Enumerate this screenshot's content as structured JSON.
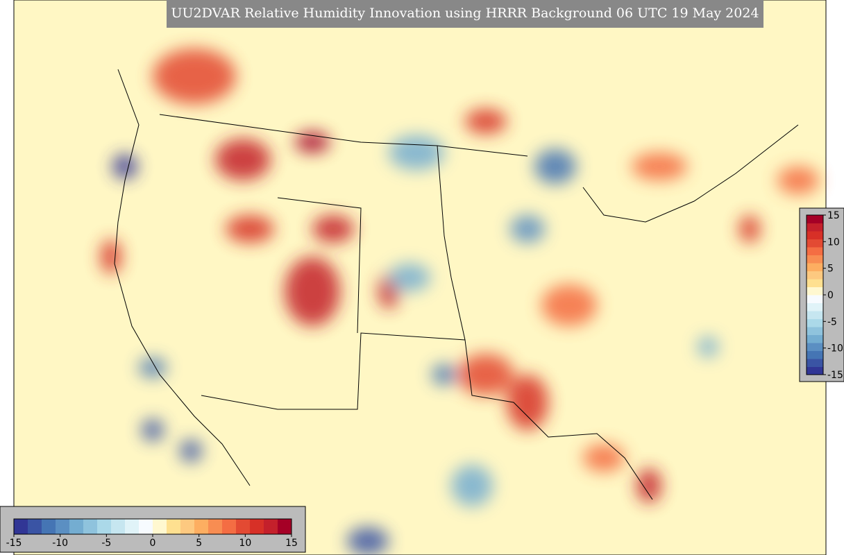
{
  "title": "UU2DVAR Relative Humidity Innovation using HRRR Background 06 UTC 19 May 2024",
  "colorbars": [
    {
      "orientation": "horizontal",
      "lim": [
        -15,
        15
      ],
      "ticks": [
        -15,
        -10,
        -5,
        0,
        5,
        10,
        15
      ]
    },
    {
      "orientation": "vertical",
      "lim": [
        -15,
        15
      ],
      "ticks": [
        15,
        10,
        5,
        0,
        -5,
        -10,
        -15
      ]
    }
  ],
  "colors": [
    "#313695",
    "#3a54a4",
    "#4575b4",
    "#5b8fc2",
    "#74add1",
    "#8fc3dd",
    "#abd9e9",
    "#c6e6f0",
    "#e0f3f8",
    "#f7fbff",
    "#fff8d0",
    "#fee090",
    "#fdc980",
    "#fdae61",
    "#f88d52",
    "#f46d43",
    "#e34a33",
    "#d73027",
    "#c4202b",
    "#a50026"
  ]
}
